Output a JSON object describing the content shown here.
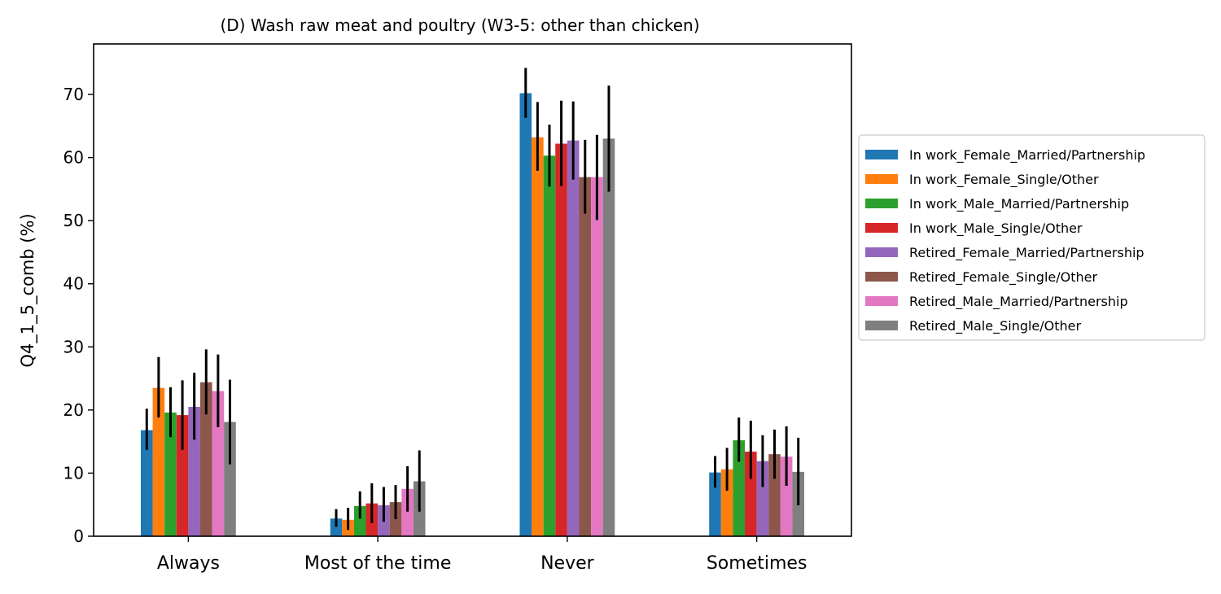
{
  "chart_data": {
    "type": "bar",
    "title": "(D) Wash raw meat and poultry (W3-5: other than chicken)",
    "xlabel": "",
    "ylabel": "Q4_1_5_comb (%)",
    "ylim": [
      0,
      78
    ],
    "yticks": [
      0,
      10,
      20,
      30,
      40,
      50,
      60,
      70
    ],
    "grid": false,
    "legend_position": "right, outside",
    "categories": [
      "Always",
      "Most of the time",
      "Never",
      "Sometimes"
    ],
    "series": [
      {
        "name": "In work_Female_Married/Partnership",
        "color": "#1f77b4",
        "values": [
          16.8,
          2.8,
          70.2,
          10.1
        ],
        "err_low": [
          13.7,
          1.5,
          66.3,
          7.7
        ],
        "err_high": [
          20.2,
          4.3,
          74.2,
          12.7
        ]
      },
      {
        "name": "In work_Female_Single/Other",
        "color": "#ff7f0e",
        "values": [
          23.5,
          2.6,
          63.2,
          10.6
        ],
        "err_low": [
          18.8,
          1.0,
          57.9,
          7.2
        ],
        "err_high": [
          28.4,
          4.5,
          68.8,
          14.0
        ]
      },
      {
        "name": "In work_Male_Married/Partnership",
        "color": "#2ca02c",
        "values": [
          19.6,
          4.8,
          60.3,
          15.2
        ],
        "err_low": [
          15.7,
          2.8,
          55.4,
          11.8
        ],
        "err_high": [
          23.6,
          7.1,
          65.2,
          18.8
        ]
      },
      {
        "name": "In work_Male_Single/Other",
        "color": "#d62728",
        "values": [
          19.2,
          5.2,
          62.2,
          13.4
        ],
        "err_low": [
          13.7,
          2.1,
          55.5,
          9.1
        ],
        "err_high": [
          24.7,
          8.4,
          69.0,
          18.3
        ]
      },
      {
        "name": "Retired_Female_Married/Partnership",
        "color": "#9467bd",
        "values": [
          20.5,
          4.9,
          62.7,
          11.9
        ],
        "err_low": [
          15.3,
          2.3,
          56.5,
          7.8
        ],
        "err_high": [
          25.9,
          7.8,
          68.9,
          16.0
        ]
      },
      {
        "name": "Retired_Female_Single/Other",
        "color": "#8c564b",
        "values": [
          24.4,
          5.4,
          56.9,
          13.0
        ],
        "err_low": [
          19.3,
          2.7,
          51.1,
          9.1
        ],
        "err_high": [
          29.6,
          8.1,
          62.8,
          16.9
        ]
      },
      {
        "name": "Retired_Male_Married/Partnership",
        "color": "#e377c2",
        "values": [
          23.0,
          7.5,
          56.9,
          12.6
        ],
        "err_low": [
          17.3,
          3.9,
          50.1,
          8.0
        ],
        "err_high": [
          28.8,
          11.1,
          63.6,
          17.4
        ]
      },
      {
        "name": "Retired_Male_Single/Other",
        "color": "#7f7f7f",
        "values": [
          18.1,
          8.7,
          63.0,
          10.2
        ],
        "err_low": [
          11.4,
          3.9,
          54.6,
          4.9
        ],
        "err_high": [
          24.8,
          13.6,
          71.4,
          15.6
        ]
      }
    ]
  }
}
